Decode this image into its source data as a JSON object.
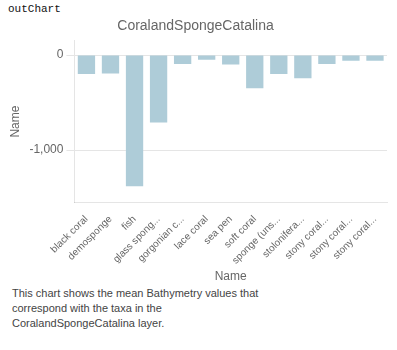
{
  "chart_data": {
    "type": "bar",
    "title": "CoralandSpongeCatalina",
    "xlabel": "Name",
    "ylabel": "Name",
    "categories": [
      "black coral",
      "demosponge",
      "fish",
      "glass spong...",
      "gorgonian c...",
      "lace coral",
      "sea pen",
      "soft coral",
      "sponge (uns...",
      "stolonifera...",
      "stony coral...",
      "stony coral...",
      "stony coral..."
    ],
    "values": [
      -200,
      -195,
      -1380,
      -710,
      -95,
      -50,
      -100,
      -350,
      -200,
      -245,
      -95,
      -60,
      -60
    ],
    "color": "#aeccd8",
    "ylim": [
      -1550,
      150
    ],
    "yticks": [
      0,
      {
        "value": -1000,
        "label": "-1,000"
      }
    ],
    "grid": true,
    "annotations": [
      "outChart",
      "This chart shows the mean Bathymetry values that\ncorrespond with the taxa in the\nCoralandSpongeCatalina layer."
    ]
  }
}
